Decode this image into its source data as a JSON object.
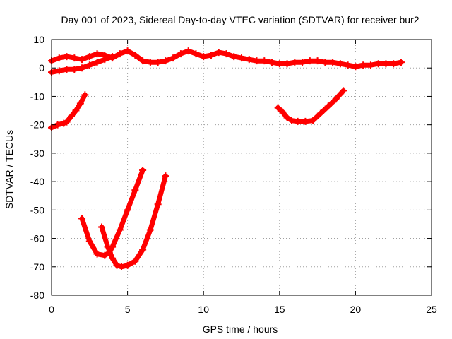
{
  "chart_data": {
    "type": "scatter",
    "title": "Day 001 of 2023, Sidereal Day-to-day VTEC variation (SDTVAR) for receiver bur2",
    "xlabel": "GPS time / hours",
    "ylabel": "SDTVAR / TECUs",
    "xlim": [
      0,
      25
    ],
    "ylim": [
      -80,
      10
    ],
    "xticks": [
      0,
      5,
      10,
      15,
      20,
      25
    ],
    "yticks": [
      10,
      0,
      -10,
      -20,
      -30,
      -40,
      -50,
      -60,
      -70,
      -80
    ],
    "grid": true,
    "legend": "none",
    "series_color": "#ff0000",
    "series": [
      {
        "x": [
          0,
          0.5,
          1,
          1.5,
          2,
          2.5,
          3,
          3.5,
          4,
          4.5,
          5,
          5.5,
          6,
          6.5,
          7,
          7.5,
          8,
          8.5,
          9,
          9.5,
          10,
          10.5,
          11,
          11.5,
          12,
          12.5,
          13,
          13.5,
          14,
          14.5,
          15,
          15.5,
          16,
          16.5,
          17,
          17.5,
          18,
          18.5,
          19,
          19.5,
          20,
          20.5,
          21,
          21.5,
          22,
          22.5,
          23
        ],
        "y": [
          2.5,
          3.5,
          4,
          3.5,
          3,
          4,
          5,
          4.5,
          3.5,
          5,
          6,
          4.5,
          2.5,
          2,
          2,
          2.5,
          3.5,
          5,
          6,
          5,
          4,
          4.5,
          5.5,
          5,
          4,
          3.5,
          3,
          2.5,
          2.5,
          2,
          1.5,
          1.5,
          2,
          2,
          2.5,
          2.5,
          2,
          2,
          1.5,
          1,
          0.5,
          1,
          1,
          1.5,
          1.5,
          1.5,
          2
        ]
      },
      {
        "x": [
          0,
          0.5,
          1,
          1.5,
          2,
          2.5,
          3,
          3.5,
          4
        ],
        "y": [
          -1.5,
          -1,
          -0.5,
          -0.5,
          0,
          1,
          2,
          3,
          4
        ]
      },
      {
        "x": [
          0,
          0.4,
          0.8,
          1,
          1.3,
          1.6,
          1.9,
          2.2
        ],
        "y": [
          -21,
          -20,
          -19.5,
          -19,
          -17,
          -15,
          -12.5,
          -9.5
        ]
      },
      {
        "x": [
          2,
          2.5,
          3,
          3.5,
          3.8,
          4,
          4.5,
          5,
          5.5,
          6
        ],
        "y": [
          -53,
          -61,
          -65.5,
          -66,
          -65,
          -63,
          -57,
          -50,
          -43,
          -36
        ]
      },
      {
        "x": [
          3.3,
          3.7,
          4,
          4.3,
          4.6,
          5,
          5.5,
          6,
          6.5,
          7,
          7.5
        ],
        "y": [
          -56,
          -63,
          -67,
          -69.5,
          -70,
          -69.5,
          -68,
          -64,
          -57,
          -48,
          -38
        ]
      },
      {
        "x": [
          14.9,
          15.2,
          15.5,
          15.8,
          16.2,
          16.7,
          17.2,
          17.7,
          18.2,
          18.7,
          19.2
        ],
        "y": [
          -14,
          -15.5,
          -17.5,
          -18.5,
          -18.8,
          -18.8,
          -18.5,
          -16,
          -13.5,
          -11,
          -8
        ]
      }
    ]
  }
}
